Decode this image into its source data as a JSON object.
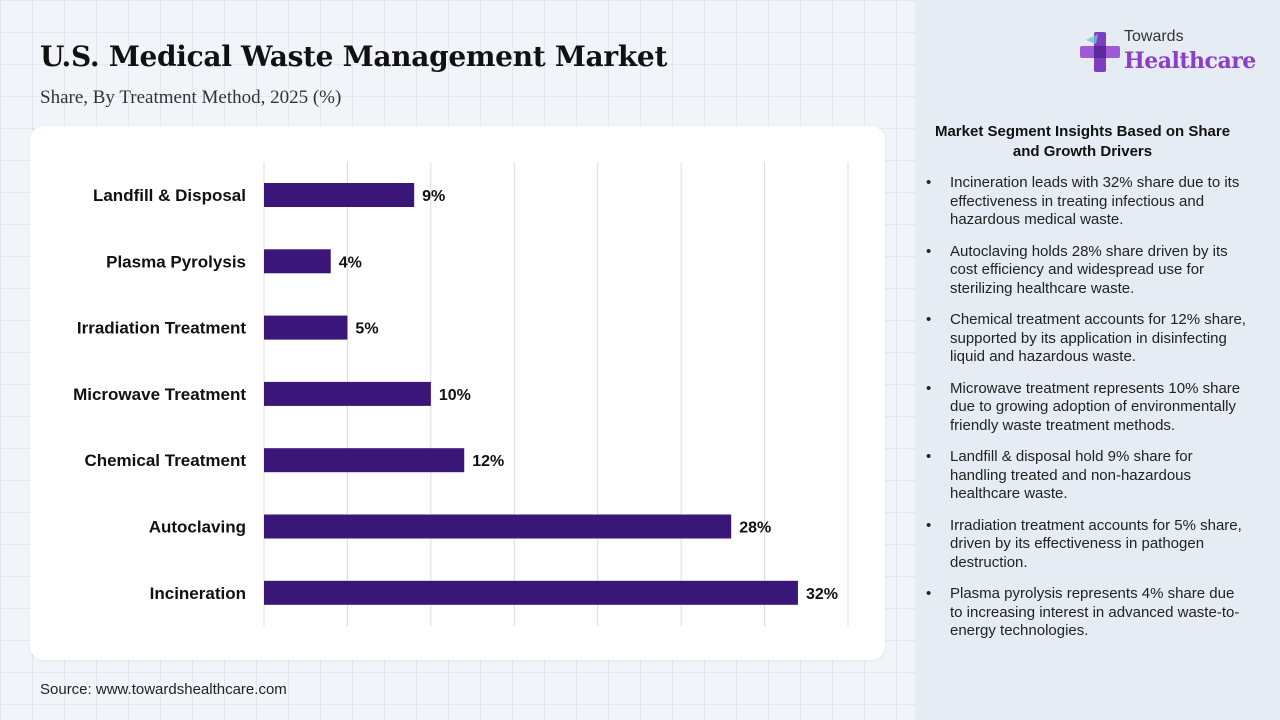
{
  "header": {
    "title": "U.S. Medical Waste Management Market",
    "subtitle": "Share, By Treatment Method, 2025 (%)"
  },
  "logo": {
    "top": "Towards",
    "main": "Healthcare"
  },
  "footer": {
    "source": "Source: www.towardshealthcare.com"
  },
  "colors": {
    "bar": "#3b1679",
    "accent": "#8b3fc9"
  },
  "chart_data": {
    "type": "bar",
    "orientation": "horizontal",
    "categories": [
      "Landfill & Disposal",
      "Plasma Pyrolysis",
      "Irradiation Treatment",
      "Microwave Treatment",
      "Chemical Treatment",
      "Autoclaving",
      "Incineration"
    ],
    "values": [
      9,
      4,
      5,
      10,
      12,
      28,
      32
    ],
    "data_labels": [
      "9%",
      "4%",
      "5%",
      "10%",
      "12%",
      "28%",
      "32%"
    ],
    "xlim": [
      0,
      35
    ],
    "grid": true,
    "legend": "none"
  },
  "panel": {
    "heading": "Market Segment Insights Based on Share and Growth Drivers",
    "bullet": "•",
    "items": [
      "Incineration leads with 32% share due to its effectiveness in treating infectious and hazardous medical waste.",
      "Autoclaving holds 28% share driven by its cost efficiency and widespread use for sterilizing healthcare waste.",
      "Chemical treatment accounts for 12% share, supported by its application in disinfecting liquid and hazardous waste.",
      "Microwave treatment represents 10% share due to growing adoption of environmentally friendly waste treatment methods.",
      "Landfill & disposal hold 9% share for handling treated and non-hazardous healthcare waste.",
      "Irradiation treatment accounts for 5% share, driven by its effectiveness in pathogen destruction.",
      "Plasma pyrolysis represents 4% share due to increasing interest in advanced waste-to-energy technologies."
    ]
  }
}
